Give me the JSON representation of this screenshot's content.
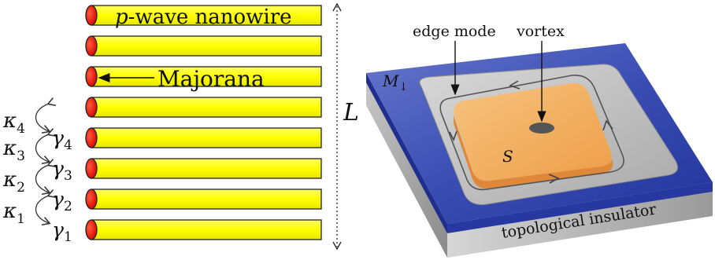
{
  "left_panel": {
    "title_prefix": "p",
    "title_rest": "-wave nanowire",
    "majorana_label": "Majorana",
    "length_label": "L",
    "wire_count": 8,
    "wire_color": "#ffff00",
    "end_color": "#ee1100",
    "kappas": [
      {
        "base": "κ",
        "sub": "4"
      },
      {
        "base": "κ",
        "sub": "3"
      },
      {
        "base": "κ",
        "sub": "2"
      },
      {
        "base": "κ",
        "sub": "1"
      }
    ],
    "gammas": [
      {
        "base": "γ",
        "sub": "4"
      },
      {
        "base": "γ",
        "sub": "3"
      },
      {
        "base": "γ",
        "sub": "2"
      },
      {
        "base": "γ",
        "sub": "1"
      }
    ]
  },
  "right_panel": {
    "edge_mode_label": "edge mode",
    "vortex_label": "vortex",
    "magnet_label_base": "M",
    "magnet_label_sub": "↓",
    "superconductor_label": "S",
    "substrate_label": "topological insulator",
    "magnet_color": "#2e40a8",
    "superconductor_color": "#f2ad62",
    "substrate_color": "#b4b4b4"
  }
}
